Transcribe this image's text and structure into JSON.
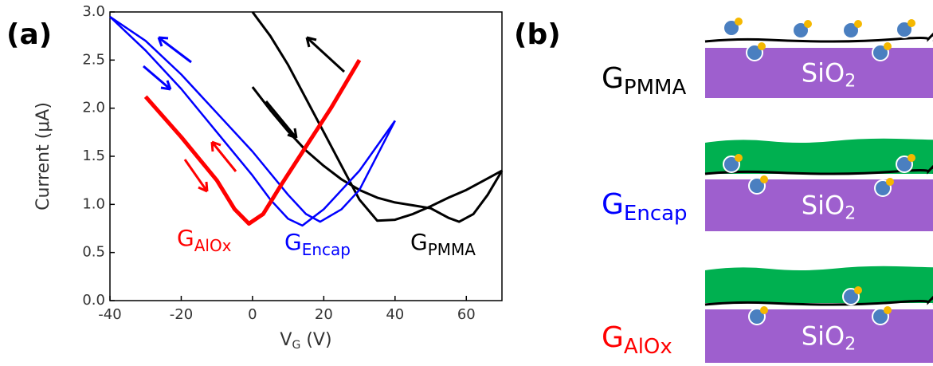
{
  "panel_labels": [
    "(a)",
    "(b)"
  ],
  "chart_data": {
    "type": "line",
    "xlabel": {
      "main": "V",
      "sub": "G",
      "rest": " (V)"
    },
    "ylabel": "Current (μA)",
    "xlim": [
      -40,
      70
    ],
    "xticks": [
      -40,
      -20,
      0,
      20,
      40,
      60
    ],
    "ylim": [
      0,
      3
    ],
    "yticks": [
      {
        "value": 0,
        "label": "0.0"
      },
      {
        "value": 0.5,
        "label": "0.5"
      },
      {
        "value": 1,
        "label": "1.0"
      },
      {
        "value": 1.5,
        "label": "1.5"
      },
      {
        "value": 2,
        "label": "2.0"
      },
      {
        "value": 2.5,
        "label": "2.5"
      },
      {
        "value": 3,
        "label": "3.0"
      }
    ],
    "series": [
      {
        "color": "#000000",
        "x": [
          0,
          5,
          10,
          15,
          20,
          25,
          30,
          35,
          40,
          45,
          50,
          55,
          58,
          62,
          66,
          70
        ],
        "y": [
          2.22,
          1.98,
          1.76,
          1.56,
          1.4,
          1.26,
          1.15,
          1.07,
          1.02,
          0.99,
          0.96,
          0.86,
          0.82,
          0.9,
          1.1,
          1.35
        ]
      },
      {
        "color": "#000000",
        "x": [
          0,
          5,
          10,
          15,
          20,
          25,
          30,
          35,
          40,
          45,
          50,
          55,
          60,
          65,
          70
        ],
        "y": [
          3.0,
          2.75,
          2.45,
          2.1,
          1.75,
          1.4,
          1.05,
          0.83,
          0.84,
          0.9,
          0.98,
          1.07,
          1.15,
          1.25,
          1.35
        ]
      },
      {
        "color": "#0000ff",
        "x": [
          -40,
          -30,
          -20,
          -10,
          0,
          5,
          10,
          14,
          20,
          30,
          40
        ],
        "y": [
          2.95,
          2.6,
          2.2,
          1.75,
          1.3,
          1.05,
          0.85,
          0.78,
          0.95,
          1.35,
          1.87
        ]
      },
      {
        "color": "#0000ff",
        "x": [
          -40,
          -30,
          -20,
          -10,
          0,
          10,
          15,
          19,
          25,
          30,
          40
        ],
        "y": [
          2.95,
          2.7,
          2.35,
          1.95,
          1.55,
          1.1,
          0.9,
          0.82,
          0.95,
          1.15,
          1.87
        ]
      },
      {
        "color": "#ff0000",
        "x": [
          -30,
          -20,
          -10,
          -5,
          -1,
          3,
          8,
          15,
          22,
          30
        ],
        "y": [
          2.12,
          1.7,
          1.25,
          0.95,
          0.8,
          0.9,
          1.2,
          1.6,
          2.0,
          2.5
        ]
      }
    ],
    "annotations": [
      {
        "main": "G",
        "sub": "AlOx",
        "color": "#ff0000"
      },
      {
        "main": "G",
        "sub": "Encap",
        "color": "#0000ff"
      },
      {
        "main": "G",
        "sub": "PMMA",
        "color": "#000000"
      }
    ]
  },
  "diagram": {
    "rows": [
      {
        "main": "G",
        "sub": "PMMA",
        "color": "#000000",
        "substrate": {
          "main": "SiO",
          "sub": "2"
        }
      },
      {
        "main": "G",
        "sub": "Encap",
        "color": "#0000ff",
        "substrate": {
          "main": "SiO",
          "sub": "2"
        }
      },
      {
        "main": "G",
        "sub": "AlOx",
        "color": "#ff0000",
        "substrate": {
          "main": "SiO",
          "sub": "2"
        }
      }
    ]
  }
}
